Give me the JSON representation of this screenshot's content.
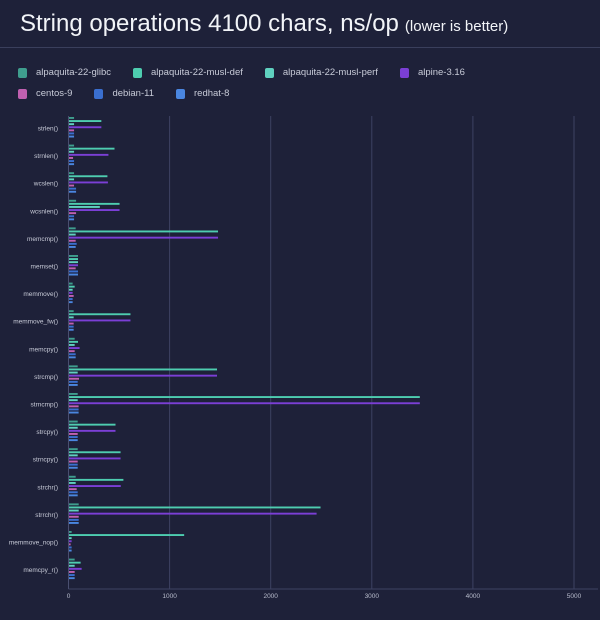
{
  "chart_data": {
    "type": "bar",
    "orientation": "horizontal",
    "title": "String operations 4100 chars, ns/op",
    "subtitle": "(lower is better)",
    "xlim": [
      0,
      5200
    ],
    "xticks": [
      "0",
      "1000",
      "2000",
      "3000",
      "4000",
      "5000"
    ],
    "grid": true,
    "legend_position": "top",
    "categories": [
      "strlen()",
      "strnlen()",
      "wcslen()",
      "wcsnlen()",
      "memcmp()",
      "memset()",
      "memmove()",
      "memmove_fw()",
      "memcpy()",
      "strcmp()",
      "strncmp()",
      "strcpy()",
      "strncpy()",
      "strchr()",
      "strrchr()",
      "memmove_nop()",
      "memcpy_r()"
    ],
    "series": [
      {
        "name": "alpaquita-22-glibc",
        "color": "#3f9e8e",
        "values": [
          50,
          50,
          50,
          70,
          66,
          89,
          36,
          46,
          56,
          86,
          86,
          86,
          86,
          66,
          96,
          26,
          56
        ]
      },
      {
        "name": "alpaquita-22-musl-def",
        "color": "#4ecdb0",
        "values": [
          320,
          450,
          380,
          500,
          1474,
          89,
          56,
          608,
          89,
          1464,
          3470,
          460,
          510,
          538,
          2488,
          1139,
          115
        ]
      },
      {
        "name": "alpaquita-22-musl-perf",
        "color": "#5fd0bf",
        "values": [
          50,
          50,
          50,
          305,
          66,
          89,
          36,
          46,
          56,
          86,
          86,
          86,
          86,
          66,
          96,
          26,
          56
        ]
      },
      {
        "name": "alpine-3.16",
        "color": "#7b3fd6",
        "values": [
          320,
          390,
          385,
          500,
          1474,
          89,
          36,
          608,
          105,
          1464,
          3470,
          460,
          510,
          512,
          2449,
          26,
          125
        ]
      },
      {
        "name": "centos-9",
        "color": "#c060b0",
        "values": [
          50,
          40,
          50,
          70,
          66,
          66,
          46,
          46,
          56,
          99,
          95,
          86,
          86,
          76,
          96,
          16,
          56
        ]
      },
      {
        "name": "debian-11",
        "color": "#3a6fd0",
        "values": [
          50,
          50,
          70,
          50,
          76,
          89,
          36,
          46,
          66,
          86,
          95,
          86,
          86,
          86,
          96,
          26,
          56
        ]
      },
      {
        "name": "redhat-8",
        "color": "#4a86e0",
        "values": [
          50,
          50,
          70,
          50,
          66,
          89,
          36,
          46,
          66,
          86,
          95,
          86,
          86,
          86,
          96,
          26,
          56
        ]
      }
    ]
  }
}
